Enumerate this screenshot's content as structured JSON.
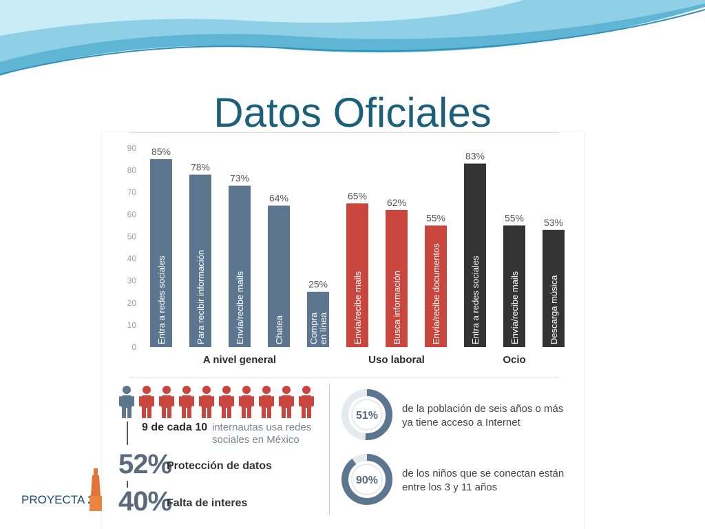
{
  "slide": {
    "title": "Datos Oficiales",
    "logo_text": "PROYECTA 2"
  },
  "colors": {
    "general": "#5c7690",
    "laboral": "#c8463e",
    "ocio": "#333333",
    "title": "#1b5f7a"
  },
  "chart_data": {
    "type": "bar",
    "ylim": [
      0,
      90
    ],
    "yticks": [
      0,
      10,
      20,
      30,
      40,
      50,
      60,
      70,
      80,
      90
    ],
    "grid": false,
    "bars": [
      {
        "group": "A nivel general",
        "label": "Entra a redes sociales",
        "value": 85,
        "value_label": "85%"
      },
      {
        "group": "A nivel general",
        "label": "Para recibir información",
        "value": 78,
        "value_label": "78%"
      },
      {
        "group": "A nivel general",
        "label": "Envía/recibe mails",
        "value": 73,
        "value_label": "73%"
      },
      {
        "group": "A nivel general",
        "label": "Chatea",
        "value": 64,
        "value_label": "64%"
      },
      {
        "group": "A nivel general",
        "label": "Compra\nen línea",
        "value": 25,
        "value_label": "25%"
      },
      {
        "group": "Uso laboral",
        "label": "Envía/recibe mails",
        "value": 65,
        "value_label": "65%"
      },
      {
        "group": "Uso laboral",
        "label": "Busca información",
        "value": 62,
        "value_label": "62%"
      },
      {
        "group": "Uso laboral",
        "label": "Envía/recibe documentos",
        "value": 55,
        "value_label": "55%"
      },
      {
        "group": "Ocio",
        "label": "Entra a redes sociales",
        "value": 83,
        "value_label": "83%"
      },
      {
        "group": "Ocio",
        "label": "Envía/recibe mails",
        "value": 55,
        "value_label": "55%"
      },
      {
        "group": "Ocio",
        "label": "Descarga música",
        "value": 53,
        "value_label": "53%"
      }
    ],
    "groups": [
      "A nivel general",
      "Uso laboral",
      "Ocio"
    ]
  },
  "infographic": {
    "people_total": 10,
    "people_highlighted": 9,
    "ratio_bold": "9 de cada 10",
    "ratio_text": "internautas usa redes sociales en México",
    "stats": [
      {
        "value": "52%",
        "label": "Protección de datos"
      },
      {
        "value": "40%",
        "label": "Falta de interes"
      }
    ],
    "gauges": [
      {
        "value": 51,
        "label": "51%",
        "text": "de la población de seis años o más ya tiene acceso a Internet"
      },
      {
        "value": 90,
        "label": "90%",
        "text": "de los niños que se conectan están entre los 3 y 11 años"
      }
    ]
  }
}
